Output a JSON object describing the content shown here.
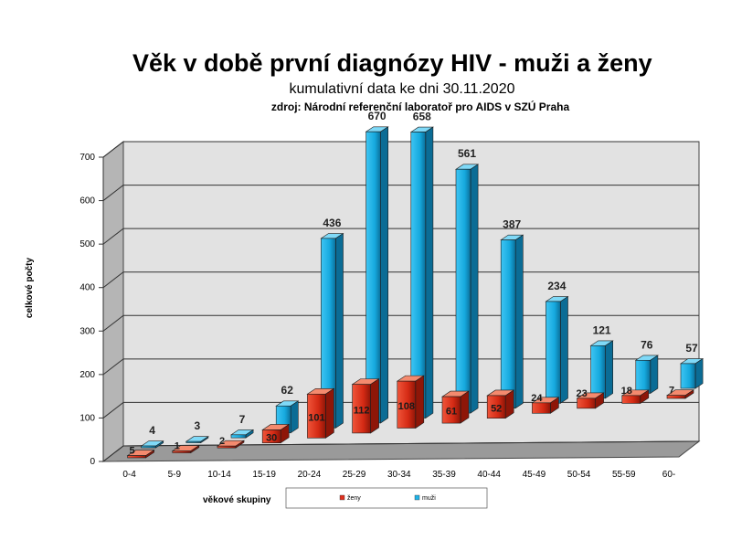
{
  "chart_data": {
    "type": "bar",
    "title": "Věk v době první diagnózy HIV - muži a ženy",
    "subtitle": "kumulativní data ke dni 30.11.2020",
    "source": "zdroj: Národní referenční laboratoř pro AIDS v SZÚ Praha",
    "xlabel": "věkové skupiny",
    "ylabel": "celkové počty",
    "ylim": [
      0,
      700
    ],
    "yticks": [
      "0",
      "100",
      "200",
      "300",
      "400",
      "500",
      "600",
      "700"
    ],
    "categories": [
      "0-4",
      "5-9",
      "10-14",
      "15-19",
      "20-24",
      "25-29",
      "30-34",
      "35-39",
      "40-44",
      "45-49",
      "50-54",
      "55-59",
      "60-"
    ],
    "series": [
      {
        "name": "ženy",
        "color": "#e0301e",
        "values": [
          5,
          1,
          2,
          30,
          101,
          112,
          108,
          61,
          52,
          24,
          23,
          18,
          7
        ]
      },
      {
        "name": "muži",
        "color": "#1fb3e8",
        "values": [
          4,
          3,
          7,
          62,
          436,
          670,
          658,
          561,
          387,
          234,
          121,
          76,
          57
        ]
      }
    ],
    "grid": true,
    "legend": "bottom",
    "three_d": true
  }
}
